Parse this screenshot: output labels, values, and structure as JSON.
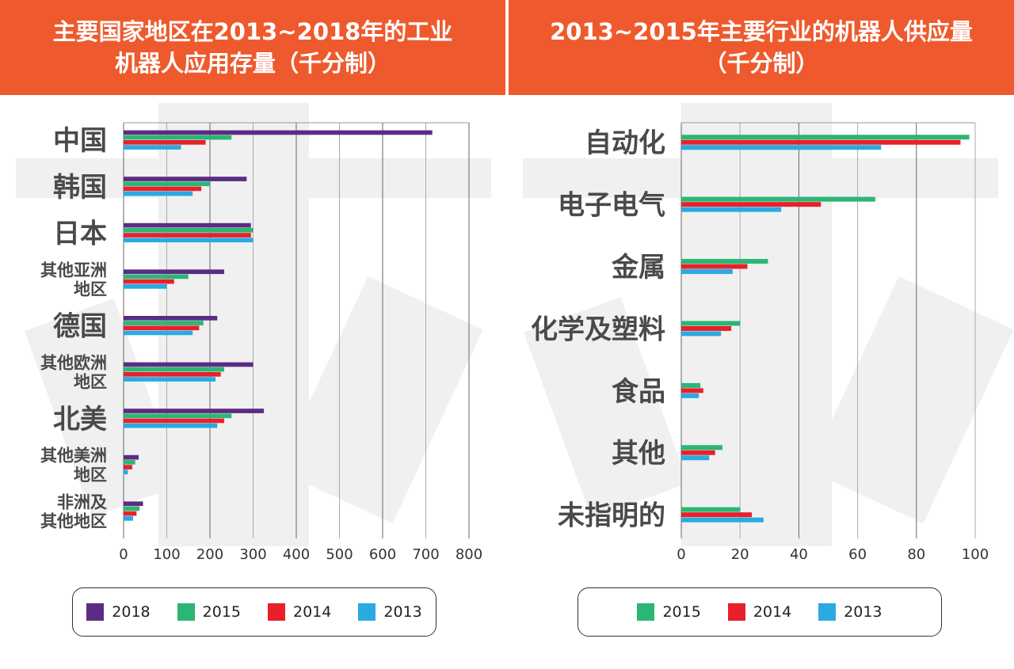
{
  "colors": {
    "2018": "#5b2c83",
    "2015": "#2bb673",
    "2014": "#e8202a",
    "2013": "#29aae1",
    "banner": "#ee5a2d"
  },
  "chart_data": [
    {
      "type": "bar",
      "orientation": "horizontal",
      "title": "主要国家地区在2013~2018年的工业机器人应用存量（千分制）",
      "title_lines": [
        "主要国家地区在2013~2018年的工业",
        "机器人应用存量（千分制）"
      ],
      "categories": [
        "中国",
        "韩国",
        "日本",
        "其他亚洲地区",
        "德国",
        "其他欧洲地区",
        "北美",
        "其他美洲地区",
        "非洲及其他地区"
      ],
      "category_lines": [
        [
          "中国"
        ],
        [
          "韩国"
        ],
        [
          "日本"
        ],
        [
          "其他亚洲",
          "地区"
        ],
        [
          "德国"
        ],
        [
          "其他欧洲",
          "地区"
        ],
        [
          "北美"
        ],
        [
          "其他美洲",
          "地区"
        ],
        [
          "非洲及",
          "其他地区"
        ]
      ],
      "series": [
        {
          "name": "2018",
          "values": [
            715,
            285,
            295,
            233,
            217,
            300,
            325,
            35,
            45
          ]
        },
        {
          "name": "2015",
          "values": [
            250,
            200,
            300,
            150,
            185,
            233,
            250,
            27,
            37
          ]
        },
        {
          "name": "2014",
          "values": [
            190,
            180,
            295,
            117,
            175,
            225,
            233,
            20,
            30
          ]
        },
        {
          "name": "2013",
          "values": [
            133,
            160,
            300,
            100,
            160,
            213,
            217,
            10,
            22
          ]
        }
      ],
      "xlim": [
        0,
        800
      ],
      "xticks": [
        "0",
        "100",
        "200",
        "300",
        "400",
        "500",
        "600",
        "700",
        "800"
      ],
      "legend": [
        "2018",
        "2015",
        "2014",
        "2013"
      ]
    },
    {
      "type": "bar",
      "orientation": "horizontal",
      "title": "2013~2015年主要行业的机器人供应量（千分制）",
      "title_lines": [
        "2013~2015年主要行业的机器人供应量",
        "（千分制）"
      ],
      "categories": [
        "自动化",
        "电子电气",
        "金属",
        "化学及塑料",
        "食品",
        "其他",
        "未指明的"
      ],
      "category_lines": [
        [
          "自动化"
        ],
        [
          "电子电气"
        ],
        [
          "金属"
        ],
        [
          "化学及塑料"
        ],
        [
          "食品"
        ],
        [
          "其他"
        ],
        [
          "未指明的"
        ]
      ],
      "series": [
        {
          "name": "2015",
          "values": [
            98,
            66,
            29.5,
            20,
            6.5,
            14,
            20
          ]
        },
        {
          "name": "2014",
          "values": [
            95,
            47.5,
            22.5,
            17,
            7.5,
            11.5,
            24
          ]
        },
        {
          "name": "2013",
          "values": [
            68,
            34,
            17.5,
            13.5,
            6,
            9.5,
            28
          ]
        }
      ],
      "xlim": [
        0,
        100
      ],
      "xticks": [
        "0",
        "20",
        "40",
        "60",
        "80",
        "100"
      ],
      "legend": [
        "2015",
        "2014",
        "2013"
      ]
    }
  ]
}
